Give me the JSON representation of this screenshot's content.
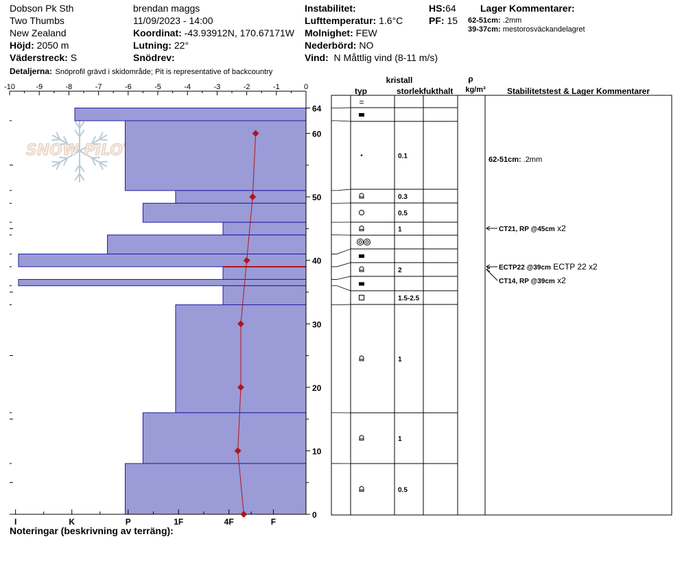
{
  "site": {
    "location": "Dobson Pk Sth",
    "name": "Two Thumbs",
    "country": "New Zealand",
    "hojd_label": "Höjd:",
    "hojd_value": "2050 m",
    "vaderstreck_label": "Väderstreck:",
    "vaderstreck_value": "S",
    "detaljerna_label": "Detaljerna:",
    "detaljerna_value": "Snöprofil grävd i skidområde;  Pit is representative of backcountry"
  },
  "observer": {
    "name": "brendan maggs",
    "datetime": "11/09/2023 - 14:00",
    "koordinat_label": "Koordinat:",
    "koordinat_value": "-43.93912N, 170.67171W",
    "lutning_label": "Lutning:",
    "lutning_value": "22°",
    "snodrev_label": "Snödrev:",
    "snodrev_value": ""
  },
  "conditions": {
    "instabilitet_label": "Instabilitet:",
    "instabilitet_value": "",
    "lufttemp_label": "Lufttemperatur:",
    "lufttemp_value": "1.6°C",
    "molnighet_label": "Molnighet:",
    "molnighet_value": "FEW",
    "nederbord_label": "Nederbörd:",
    "nederbord_value": "NO",
    "vind_label": "Vind:",
    "vind_value": "N Måttlig vind (8-11 m/s)"
  },
  "hs": {
    "label": "HS:",
    "value": "64"
  },
  "pf": {
    "label": "PF:",
    "value": "15"
  },
  "lager": {
    "title": "Lager Kommentarer:",
    "items": [
      {
        "depth": "62-51cm:",
        "text": ".2mm"
      },
      {
        "depth": "39-37cm:",
        "text": "mestorosväckandelagret"
      }
    ]
  },
  "notes_label": "Noteringar (beskrivning av terräng):",
  "logo_text": "SNOW PILOT",
  "table_headers": {
    "kristall": "kristall",
    "typ": "typ",
    "storlek": "storlek",
    "fukthalt": "fukthalt",
    "rho": "ρ",
    "kgm3": "kg/m³",
    "stab": "Stabilitetstest & Lager Kommentarer"
  },
  "chart_data": {
    "type": "bar",
    "title": "",
    "temperature_axis": {
      "ticks": [
        -10,
        -9,
        -8,
        -7,
        -6,
        -5,
        -4,
        -3,
        -2,
        -1,
        0
      ],
      "range": [
        -10,
        0
      ]
    },
    "hardness_axis": {
      "labels": [
        "I",
        "K",
        "P",
        "1F",
        "4F",
        "F"
      ],
      "positions": [
        -9.8,
        -7.9,
        -6.0,
        -4.3,
        -2.6,
        -1.1
      ]
    },
    "height_axis": {
      "ticks": [
        0,
        10,
        20,
        30,
        40,
        50,
        60,
        64
      ],
      "range": [
        0,
        64
      ],
      "minor_ticks": [
        5,
        15,
        25,
        35,
        45,
        55
      ]
    },
    "hardness_layers": [
      {
        "bottom": 62,
        "top": 64,
        "value": -7.8
      },
      {
        "bottom": 51,
        "top": 62,
        "value": -6.1
      },
      {
        "bottom": 49,
        "top": 51,
        "value": -4.4
      },
      {
        "bottom": 46,
        "top": 49,
        "value": -5.5
      },
      {
        "bottom": 44,
        "top": 46,
        "value": -2.8
      },
      {
        "bottom": 41,
        "top": 44,
        "value": -6.7
      },
      {
        "bottom": 39,
        "top": 41,
        "value": -9.7
      },
      {
        "bottom": 37,
        "top": 39,
        "value": -2.8
      },
      {
        "bottom": 36,
        "top": 37,
        "value": -9.7
      },
      {
        "bottom": 33,
        "top": 36,
        "value": -2.8
      },
      {
        "bottom": 16,
        "top": 33,
        "value": -4.4
      },
      {
        "bottom": 8,
        "top": 16,
        "value": -5.5
      },
      {
        "bottom": 0,
        "top": 8,
        "value": -6.1
      }
    ],
    "weak_layer_depth": 39,
    "temperature_profile": [
      {
        "height": 60,
        "temp": -1.7
      },
      {
        "height": 50,
        "temp": -1.8
      },
      {
        "height": 40,
        "temp": -2.0
      },
      {
        "height": 30,
        "temp": -2.2
      },
      {
        "height": 20,
        "temp": -2.2
      },
      {
        "height": 10,
        "temp": -2.3
      },
      {
        "height": 0,
        "temp": -2.1
      }
    ],
    "layers_table": [
      {
        "symbol": "=",
        "size": ""
      },
      {
        "symbol": "▬",
        "size": ""
      },
      {
        "symbol": "·",
        "size": "0.1"
      },
      {
        "symbol": "⩍",
        "size": "0.3"
      },
      {
        "symbol": "○",
        "size": "0.5"
      },
      {
        "symbol": "⩍",
        "size": "1"
      },
      {
        "symbol": "◎◎",
        "size": ""
      },
      {
        "symbol": "▬",
        "size": ""
      },
      {
        "symbol": "⩍",
        "size": "2"
      },
      {
        "symbol": "▬",
        "size": ""
      },
      {
        "symbol": "□",
        "size": "1.5-2.5"
      },
      {
        "symbol": "⩍",
        "size": "1"
      },
      {
        "symbol": "⩍",
        "size": "1"
      },
      {
        "symbol": "⩍",
        "size": "0.5"
      }
    ],
    "comments": [
      {
        "label": "62-51cm:",
        "text": ".2mm"
      }
    ],
    "stability_tests": [
      {
        "label": "CT21, RP @45cm",
        "suffix": "x2"
      },
      {
        "label": "ECTP22 @39cm",
        "suffix": "ECTP 22 x2"
      },
      {
        "label": "CT14, RP @39cm",
        "suffix": "x2"
      }
    ]
  }
}
